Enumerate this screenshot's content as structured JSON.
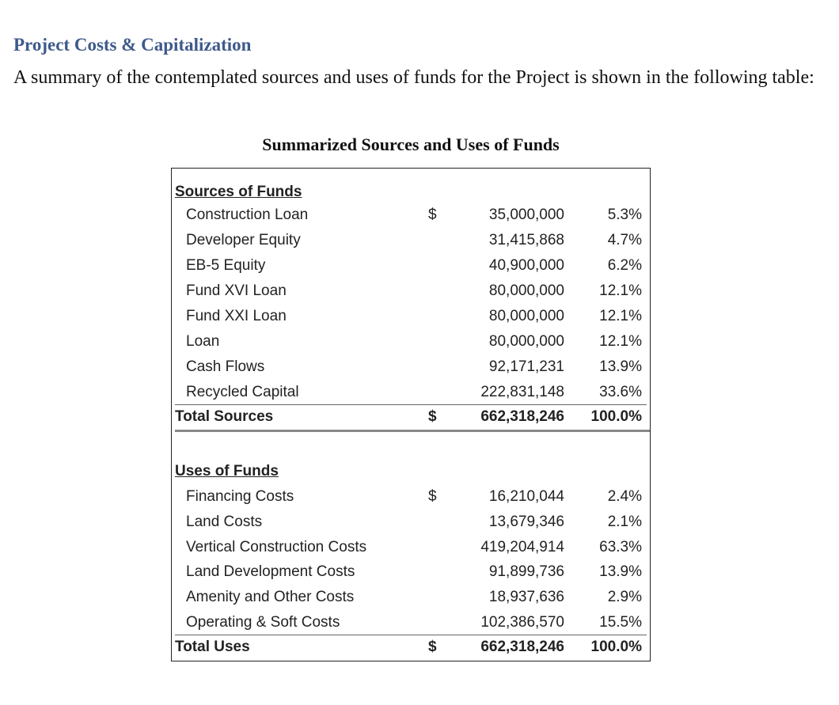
{
  "heading": "Project Costs & Capitalization",
  "intro": "A summary of the contemplated sources and uses of funds for the Project is shown in the following table:",
  "table_title": "Summarized Sources and Uses of Funds",
  "sources": {
    "header": "Sources of Funds",
    "rows": [
      {
        "label": "Construction Loan",
        "dollar": "$",
        "amount": "35,000,000",
        "pct": "5.3%"
      },
      {
        "label": "Developer Equity",
        "dollar": "",
        "amount": "31,415,868",
        "pct": "4.7%"
      },
      {
        "label": "EB-5 Equity",
        "dollar": "",
        "amount": "40,900,000",
        "pct": "6.2%"
      },
      {
        "label": "Fund XVI Loan",
        "dollar": "",
        "amount": "80,000,000",
        "pct": "12.1%"
      },
      {
        "label": "Fund XXI Loan",
        "dollar": "",
        "amount": "80,000,000",
        "pct": "12.1%"
      },
      {
        "label": "Loan",
        "dollar": "",
        "amount": "80,000,000",
        "pct": "12.1%"
      },
      {
        "label": "Cash Flows",
        "dollar": "",
        "amount": "92,171,231",
        "pct": "13.9%"
      },
      {
        "label": "Recycled Capital",
        "dollar": "",
        "amount": "222,831,148",
        "pct": "33.6%"
      }
    ],
    "total": {
      "label": "Total Sources",
      "dollar": "$",
      "amount": "662,318,246",
      "pct": "100.0%"
    }
  },
  "uses": {
    "header": "Uses of Funds",
    "rows": [
      {
        "label": "Financing Costs",
        "dollar": "$",
        "amount": "16,210,044",
        "pct": "2.4%"
      },
      {
        "label": "Land Costs",
        "dollar": "",
        "amount": "13,679,346",
        "pct": "2.1%"
      },
      {
        "label": "Vertical Construction Costs",
        "dollar": "",
        "amount": "419,204,914",
        "pct": "63.3%"
      },
      {
        "label": "Land Development Costs",
        "dollar": "",
        "amount": "91,899,736",
        "pct": "13.9%"
      },
      {
        "label": "Amenity and Other Costs",
        "dollar": "",
        "amount": "18,937,636",
        "pct": "2.9%"
      },
      {
        "label": "Operating & Soft Costs",
        "dollar": "",
        "amount": "102,386,570",
        "pct": "15.5%"
      }
    ],
    "total": {
      "label": "Total Uses",
      "dollar": "$",
      "amount": "662,318,246",
      "pct": "100.0%"
    }
  }
}
